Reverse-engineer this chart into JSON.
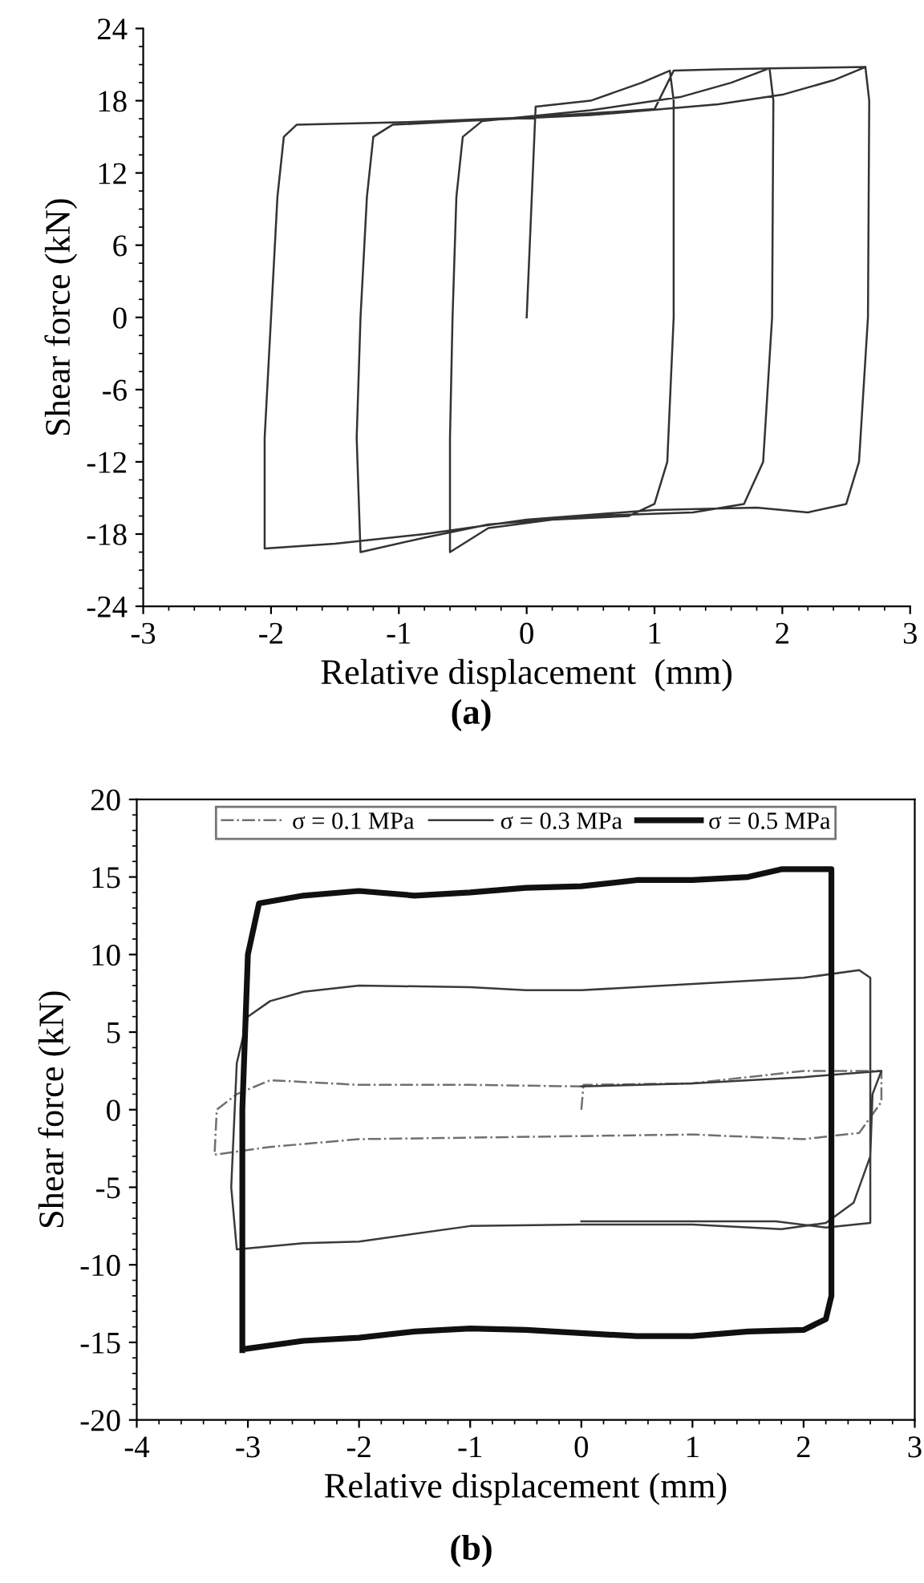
{
  "chart_data": [
    {
      "type": "line",
      "xlabel": "Relative displacement  (mm)",
      "ylabel": "Shear force (kN)",
      "annotations": [
        "(a)"
      ],
      "xlim": [
        -3,
        3
      ],
      "ylim": [
        -24,
        24
      ],
      "xticks": [
        -3,
        -2,
        -1,
        0,
        1,
        2,
        3
      ],
      "yticks": [
        -24,
        -18,
        -12,
        -6,
        0,
        6,
        12,
        18,
        24
      ],
      "grid": false,
      "legend": false,
      "line_style": "solid",
      "marker": "none",
      "series": [
        {
          "color": "#333333",
          "x": [
            0,
            0.07,
            0.5,
            0.9,
            1.12,
            1.15,
            1.15,
            1.1,
            1.0,
            0.8,
            0.2,
            -0.3,
            -0.6,
            -0.6,
            -0.58,
            -0.55,
            -0.5,
            -0.35,
            0.5,
            1.2,
            1.6,
            1.9,
            1.93,
            1.92,
            1.85,
            1.7,
            1.3,
            0.5,
            -0.3,
            -0.8,
            -1.3,
            -1.33,
            -1.3,
            -1.25,
            -1.2,
            -1.05,
            -0.5,
            0.5,
            1.5,
            2.0,
            2.4,
            2.65,
            2.68,
            2.67,
            2.6,
            2.5,
            2.2,
            1.8,
            1.0,
            0,
            -0.8,
            -1.5,
            -2.05,
            -2.05,
            -2.0,
            -1.95,
            -1.9,
            -1.8,
            -1.0,
            0,
            1.0,
            1.15,
            1.5,
            2.0,
            2.65
          ],
          "values": [
            0,
            17.5,
            18,
            19.5,
            20.5,
            18,
            0,
            -12,
            -15.5,
            -16.5,
            -16.8,
            -17.5,
            -19.5,
            -10,
            0,
            10,
            15,
            16.3,
            17.2,
            18.3,
            19.5,
            20.7,
            18,
            0,
            -12,
            -15.5,
            -16.2,
            -16.5,
            -17.2,
            -18.3,
            -19.5,
            -10,
            0,
            10,
            15,
            16,
            16.3,
            16.8,
            17.7,
            18.5,
            19.7,
            20.8,
            18,
            0,
            -12,
            -15.5,
            -16.2,
            -15.8,
            -16,
            -16.8,
            -18,
            -18.8,
            -19.2,
            -10,
            0,
            10,
            15,
            16,
            16.2,
            16.6,
            17.3,
            20.5,
            20.6,
            20.7,
            20.8
          ]
        }
      ]
    },
    {
      "type": "line",
      "xlabel": "Relative displacement (mm)",
      "ylabel": "Shear force (kN)",
      "annotations": [
        "(b)"
      ],
      "xlim": [
        -4,
        3
      ],
      "ylim": [
        -20,
        20
      ],
      "xticks": [
        -4,
        -3,
        -2,
        -1,
        0,
        1,
        2,
        3
      ],
      "yticks": [
        -20,
        -15,
        -10,
        -5,
        0,
        5,
        10,
        15,
        20
      ],
      "grid": false,
      "legend": "top",
      "marker": "none",
      "series": [
        {
          "name": "σ = 0.1 MPa",
          "color": "#707070",
          "line_style": "dashed",
          "x": [
            0,
            0.02,
            1,
            2,
            2.7,
            2.7,
            2.5,
            2,
            1,
            0,
            -1,
            -2,
            -2.8,
            -3.3,
            -3.28,
            -3.1,
            -2.8,
            -2,
            -1,
            0
          ],
          "values": [
            0,
            1.6,
            1.7,
            2.5,
            2.5,
            0.5,
            -1.5,
            -1.9,
            -1.6,
            -1.7,
            -1.8,
            -1.9,
            -2.4,
            -2.9,
            0,
            1,
            1.9,
            1.6,
            1.6,
            1.5
          ]
        },
        {
          "name": "σ = 0.3 MPa",
          "color": "#3a3a3a",
          "line_style": "solid",
          "x": [
            0,
            1,
            2,
            2.7,
            2.62,
            2.6,
            2.45,
            2.2,
            1.8,
            1,
            0,
            -1,
            -2,
            -2.5,
            -3.1,
            -3.15,
            -3.1,
            -3.0,
            -2.8,
            -2.5,
            -2,
            -1,
            -0.5,
            0,
            1,
            2,
            2.5,
            2.6,
            2.6,
            2.2,
            1.75,
            0
          ],
          "values": [
            1.5,
            1.7,
            2.1,
            2.5,
            1,
            -3,
            -6,
            -7.3,
            -7.7,
            -7.4,
            -7.4,
            -7.5,
            -8.5,
            -8.6,
            -9,
            -5,
            3,
            6,
            7,
            7.6,
            8,
            7.9,
            7.7,
            7.7,
            8.1,
            8.5,
            9,
            8.5,
            -7.3,
            -7.6,
            -7.2,
            -7.2
          ]
        },
        {
          "name": "σ = 0.5 MPa",
          "color": "#101010",
          "line_style": "solid",
          "x": [
            -3.05,
            -3.05,
            -3.0,
            -2.9,
            -2.5,
            -2,
            -1.5,
            -1,
            -0.5,
            0,
            0.5,
            1,
            1.5,
            1.8,
            2.25,
            2.25,
            2.25,
            2.2,
            2,
            1.5,
            1,
            0.5,
            0,
            -0.5,
            -1,
            -1.5,
            -2,
            -2.5,
            -3.0
          ],
          "values": [
            -15.5,
            0,
            10,
            13.3,
            13.8,
            14.1,
            13.8,
            14,
            14.3,
            14.4,
            14.8,
            14.8,
            15,
            15.5,
            15.5,
            0,
            -12,
            -13.5,
            -14.2,
            -14.3,
            -14.6,
            -14.6,
            -14.4,
            -14.2,
            -14.1,
            -14.3,
            -14.7,
            -14.9,
            -15.4
          ]
        }
      ]
    }
  ]
}
